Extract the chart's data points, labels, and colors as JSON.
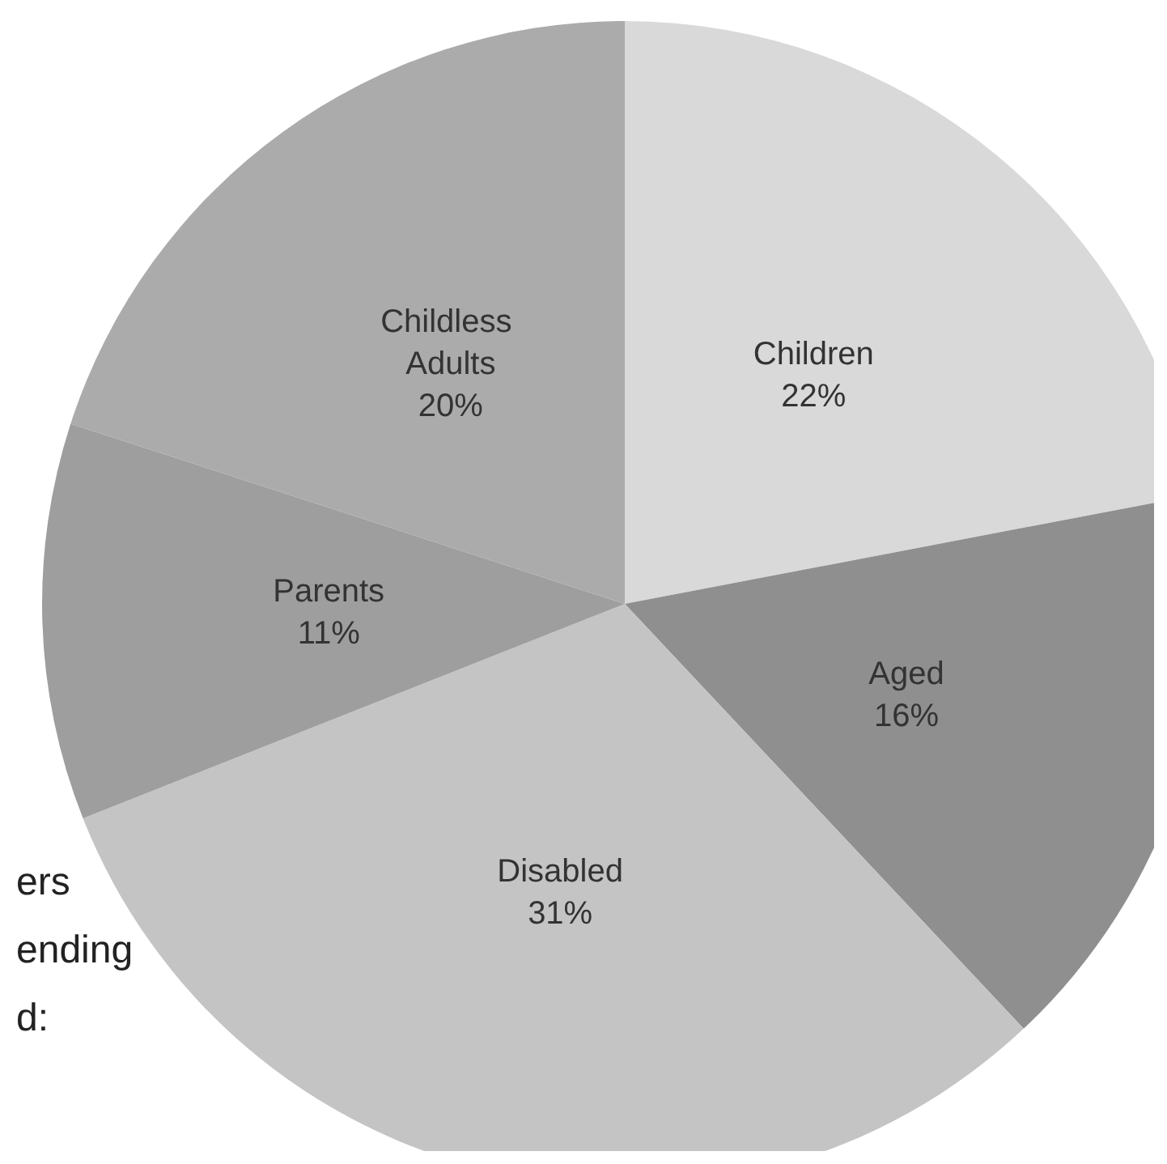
{
  "chart_data": {
    "type": "pie",
    "categories": [
      "Children",
      "Aged",
      "Disabled",
      "Parents",
      "Childless Adults"
    ],
    "values": [
      22,
      16,
      31,
      11,
      20
    ],
    "value_labels": [
      "22%",
      "16%",
      "31%",
      "11%",
      "20%"
    ],
    "colors": [
      "#d9d9d9",
      "#8f8f8f",
      "#c4c4c4",
      "#9e9e9e",
      "#ababab"
    ],
    "annotations": [
      "ers",
      "ending",
      "d:"
    ]
  }
}
